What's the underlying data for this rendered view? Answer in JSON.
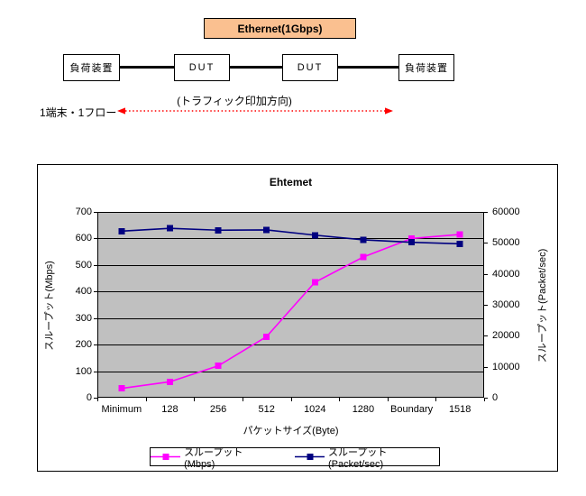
{
  "diagram": {
    "ethernet_label": "Ethernet(1Gbps)",
    "ethernet_box_color": "#fac090",
    "nodes": [
      "負荷装置",
      "DUT",
      "DUT",
      "負荷装置"
    ],
    "flow_label": "1端末・1フロー",
    "traffic_direction_label": "(トラフィック印加方向)",
    "arrow_color": "#ff0000"
  },
  "chart_data": {
    "type": "line",
    "title": "Ehtemet",
    "categories": [
      "Minimum",
      "128",
      "256",
      "512",
      "1024",
      "1280",
      "Boundary",
      "1518"
    ],
    "series": [
      {
        "name": "スループット(Mbps)",
        "axis": "left",
        "color": "#ff00ff",
        "values": [
          35,
          60,
          120,
          230,
          435,
          530,
          600,
          615
        ]
      },
      {
        "name": "スループット(Packet/sec)",
        "axis": "right",
        "color": "#000080",
        "values": [
          53800,
          54700,
          54100,
          54200,
          52500,
          51000,
          50200,
          49700
        ]
      }
    ],
    "xlabel": "パケットサイズ(Byte)",
    "ylabel_left": "スループット(Mbps)",
    "ylabel_right": "スループット(Packet/sec)",
    "left_axis": {
      "min": 0,
      "max": 700,
      "step": 100
    },
    "right_axis": {
      "min": 0,
      "max": 60000,
      "step": 10000
    },
    "plot_bg": "#c0c0c0",
    "grid": true,
    "legend_position": "bottom"
  }
}
